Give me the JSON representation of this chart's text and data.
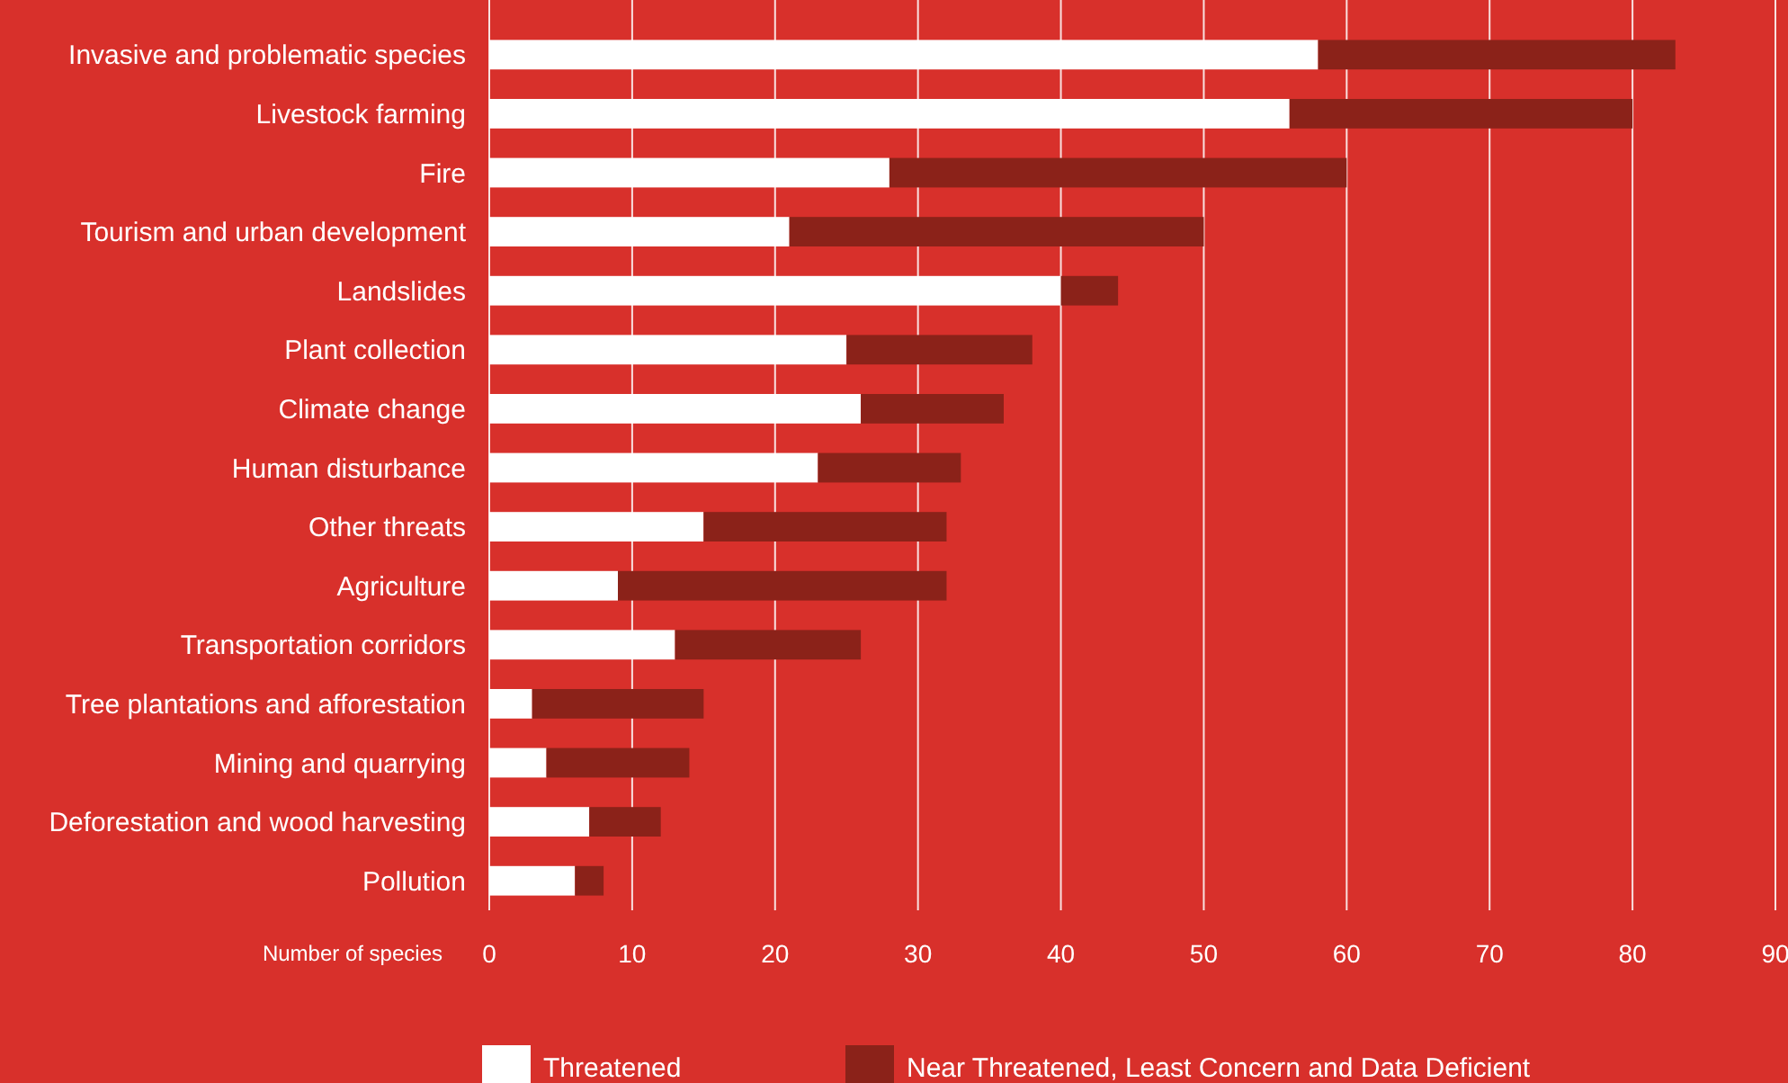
{
  "chart_data": {
    "type": "bar",
    "orientation": "horizontal",
    "stacked": true,
    "xlabel": "Number of species",
    "categories": [
      "Invasive and problematic species",
      "Livestock farming",
      "Fire",
      "Tourism and urban development",
      "Landslides",
      "Plant collection",
      "Climate change",
      "Human disturbance",
      "Other threats",
      "Agriculture",
      "Transportation corridors",
      "Tree plantations and afforestation",
      "Mining and quarrying",
      "Deforestation and wood harvesting",
      "Pollution"
    ],
    "series": [
      {
        "name": "Threatened",
        "color": "#ffffff",
        "values": [
          58,
          56,
          28,
          21,
          40,
          25,
          26,
          23,
          15,
          9,
          13,
          3,
          4,
          7,
          6
        ]
      },
      {
        "name": "Near Threatened, Least Concern and Data Deficient",
        "color": "#8b2219",
        "values": [
          25,
          24,
          32,
          29,
          4,
          13,
          10,
          10,
          17,
          23,
          13,
          12,
          10,
          5,
          2
        ]
      }
    ],
    "xlim": [
      0,
      90
    ],
    "xticks": [
      0,
      10,
      20,
      30,
      40,
      50,
      60,
      70,
      80,
      90
    ],
    "grid": "x",
    "legend": "bottom"
  }
}
